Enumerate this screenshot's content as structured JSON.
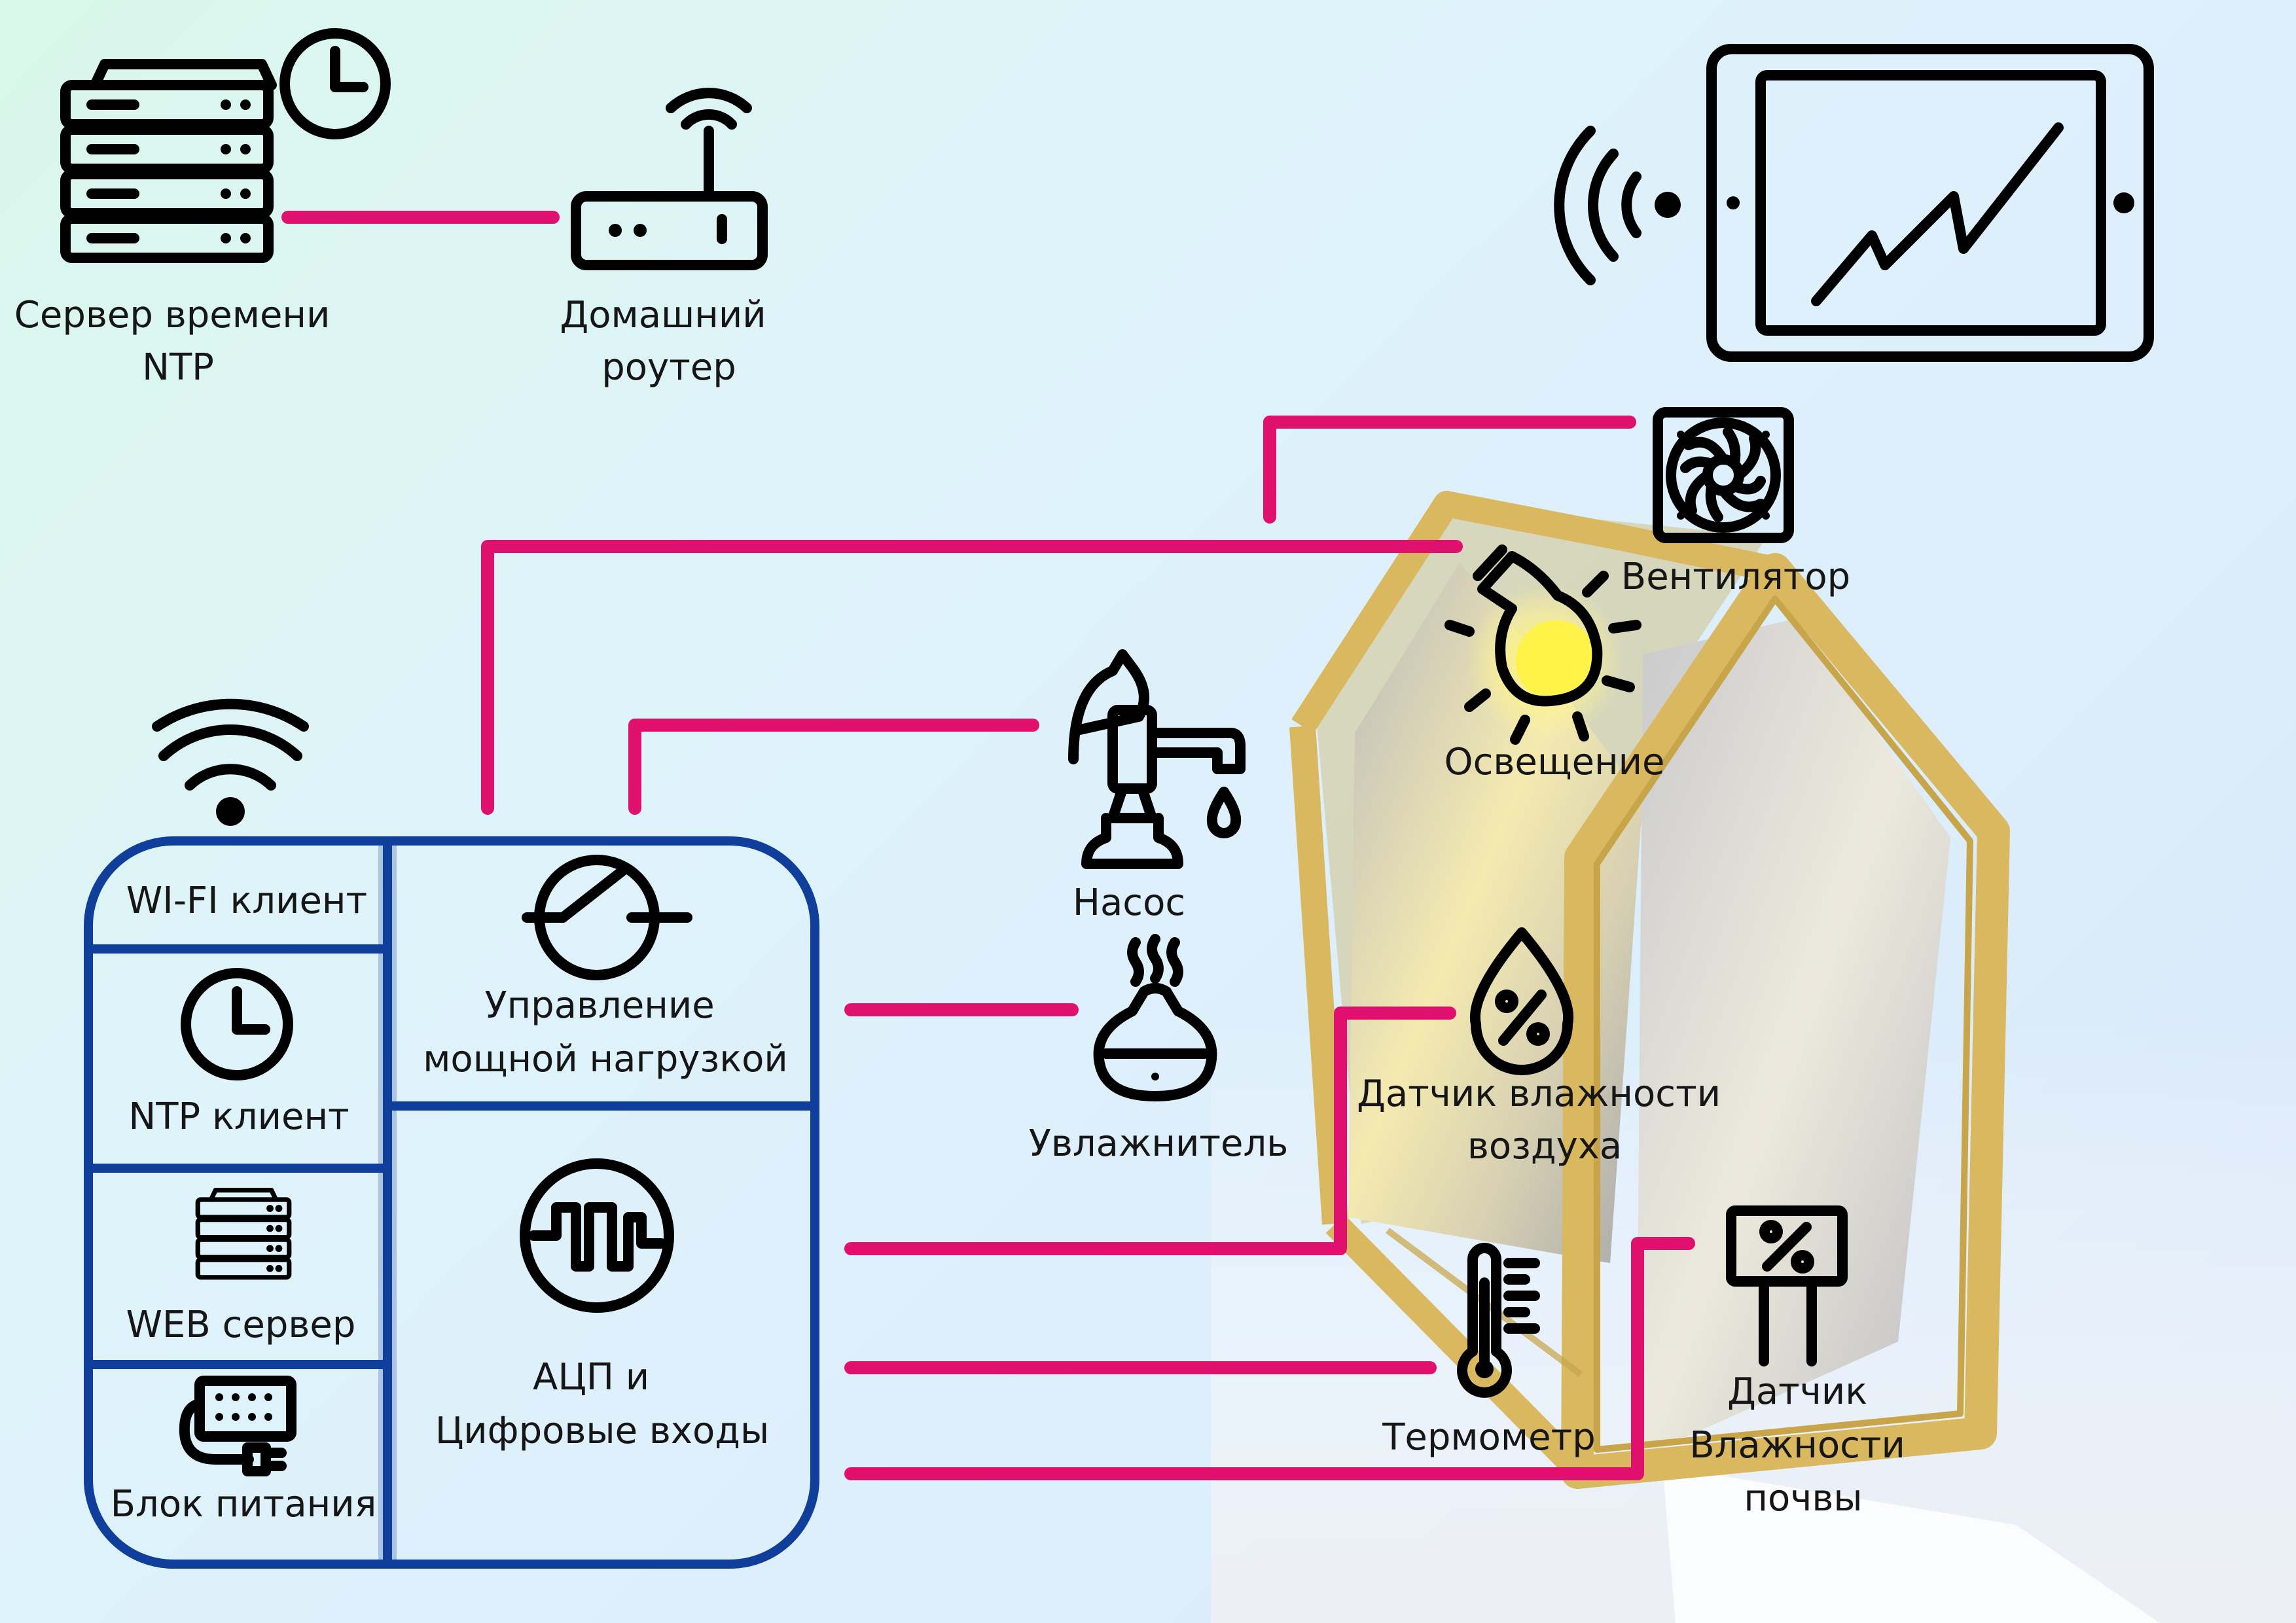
{
  "labels": {
    "ntp_server": [
      "Сервер времени",
      "NTP"
    ],
    "router": [
      "Домашний",
      "роутер"
    ],
    "fan": [
      "Вентилятор"
    ],
    "light": [
      "Освещение"
    ],
    "pump": [
      "Насос"
    ],
    "humidifier": [
      "Увлажнитель"
    ],
    "air_humidity": [
      "Датчик влажности",
      "воздуха"
    ],
    "thermometer": [
      "Термометр"
    ],
    "soil_humidity": [
      "Датчик",
      "Влажности",
      "почвы"
    ],
    "wifi_client": [
      "WI-FI клиент"
    ],
    "ntp_client": [
      "NTP клиент"
    ],
    "web_server": [
      "WEB сервер"
    ],
    "power_supply": [
      "Блок питания"
    ],
    "load_control": [
      "Управление",
      "мощной нагрузкой"
    ],
    "adc_inputs": [
      "АЦП и",
      "Цифровые входы"
    ]
  },
  "colors": {
    "link": "#e0116e",
    "controller_border": "#0f3f9a",
    "greenhouse_frame": "#d9b860",
    "icon": "#000000"
  },
  "icons": [
    "server-icon",
    "clock-icon",
    "router-icon",
    "tablet-chart-icon",
    "wifi-signal-icon",
    "fan-icon",
    "light-bulb-icon",
    "pump-icon",
    "humidifier-icon",
    "humidity-drop-icon",
    "thermometer-icon",
    "soil-sensor-icon",
    "wifi-icon",
    "relay-switch-icon",
    "signal-wave-icon",
    "power-supply-icon"
  ]
}
